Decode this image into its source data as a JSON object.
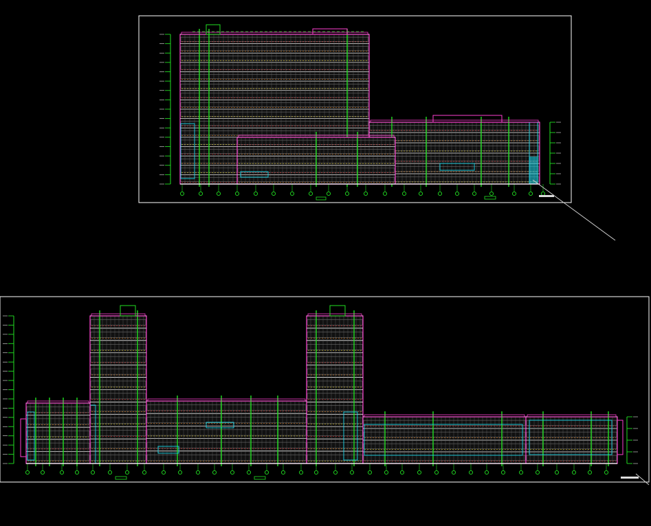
{
  "viewer": {
    "background": "#000000"
  },
  "colors": {
    "frame": "#ffffff",
    "outline_magenta": "#ff3fd2",
    "grid_green": "#22e022",
    "facade_white": "#e8e8e8",
    "glass_cyan": "#19d6e8",
    "accent_red": "#ff2a2a",
    "accent_orange": "#ff8a1a",
    "accent_yellow": "#ffe21a",
    "leader_line": "#cccccc"
  },
  "drawings": [
    {
      "id": "upper-elevation",
      "tower_floors": 16,
      "podium_floors": 6
    },
    {
      "id": "lower-elevation",
      "tower_floors": 12,
      "podium_floors": 5
    }
  ]
}
